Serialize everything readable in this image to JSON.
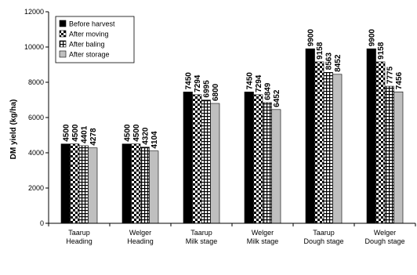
{
  "chart_data": {
    "type": "bar",
    "ylabel": "DM yield (kg/ha)",
    "ylim": [
      0,
      12000
    ],
    "yticks": [
      0,
      2000,
      4000,
      6000,
      8000,
      10000,
      12000
    ],
    "grid": false,
    "legend_position": "top-left",
    "categories": [
      [
        "Taarup",
        "Heading"
      ],
      [
        "Welger",
        "Heading"
      ],
      [
        "Taarup",
        "Milk stage"
      ],
      [
        "Welger",
        "Milk stage"
      ],
      [
        "Taarup",
        "Dough stage"
      ],
      [
        "Welger",
        "Dough stage"
      ]
    ],
    "series": [
      {
        "name": "Before harvest",
        "pattern": "solid-black",
        "values": [
          4500,
          4500,
          7450,
          7450,
          9900,
          9900
        ]
      },
      {
        "name": "After moving",
        "pattern": "checker",
        "values": [
          4500,
          4500,
          7294,
          7294,
          9158,
          9158
        ]
      },
      {
        "name": "After baling",
        "pattern": "grid",
        "values": [
          4401,
          4320,
          6995,
          6849,
          8563,
          7775
        ]
      },
      {
        "name": "After storage",
        "pattern": "solid-gray",
        "values": [
          4278,
          4104,
          6800,
          6452,
          8452,
          7456
        ]
      }
    ],
    "colors": {
      "axis": "#000000",
      "gray_fill": "#bfbfbf",
      "black_fill": "#000000"
    }
  }
}
